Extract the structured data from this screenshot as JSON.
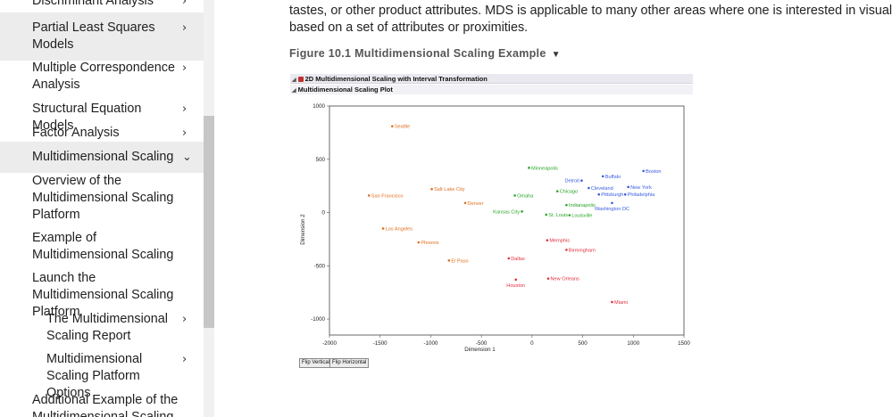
{
  "sidebar": {
    "items": [
      {
        "label": "Discriminant Analysis",
        "chevron": "›",
        "indent": false,
        "highlight": false,
        "top": -8
      },
      {
        "label": "Partial Least Squares Models",
        "chevron": "›",
        "indent": false,
        "highlight": true,
        "top": 22
      },
      {
        "label": "Multiple Correspondence Analysis",
        "chevron": "›",
        "indent": false,
        "highlight": false,
        "top": 67
      },
      {
        "label": "Structural Equation Models",
        "chevron": "›",
        "indent": false,
        "highlight": false,
        "top": 113
      },
      {
        "label": "Factor Analysis",
        "chevron": "›",
        "indent": false,
        "highlight": false,
        "top": 140
      },
      {
        "label": "Multidimensional Scaling",
        "chevron": "⌄",
        "indent": false,
        "highlight": true,
        "top": 167
      },
      {
        "label": "Overview of the Multidimensional Scaling Platform",
        "chevron": "",
        "indent": false,
        "highlight": false,
        "top": 194
      },
      {
        "label": "Example of Multidimensional Scaling",
        "chevron": "",
        "indent": false,
        "highlight": false,
        "top": 258
      },
      {
        "label": "Launch the Multidimensional Scaling Platform",
        "chevron": "",
        "indent": false,
        "highlight": false,
        "top": 303
      },
      {
        "label": "The Multidimensional Scaling Report",
        "chevron": "›",
        "indent": true,
        "highlight": false,
        "top": 349
      },
      {
        "label": "Multidimensional Scaling Platform Options",
        "chevron": "›",
        "indent": true,
        "highlight": false,
        "top": 394
      },
      {
        "label": "Additional Example of the Multidimensional Scaling",
        "chevron": "",
        "indent": false,
        "highlight": false,
        "top": 440
      }
    ]
  },
  "main": {
    "paragraph_line1": "tastes, or other product attributes. MDS is applicable to many other areas where one is interested in visualizing",
    "paragraph_line2": "based on a set of attributes or proximities.",
    "figure_caption": "Figure 10.1 Multidimensional Scaling Example",
    "caption_toggle_icon": "triangle-down-icon"
  },
  "report": {
    "outline_title": "2D Multidimensional Scaling with Interval Transformation",
    "plot_title": "Multidimensional Scaling Plot",
    "buttons": {
      "flip_vertical": "Flip Vertical",
      "flip_horizontal": "Flip Horizontal"
    }
  },
  "chart_data": {
    "type": "scatter",
    "xlabel": "Dimension 1",
    "ylabel": "Dimension 2",
    "xlim": [
      -2000,
      1500
    ],
    "ylim": [
      -1150,
      1000
    ],
    "xticks": [
      -2000,
      -1500,
      -1000,
      -500,
      0,
      500,
      1000,
      1500
    ],
    "yticks": [
      1000,
      500,
      0,
      -500,
      -1000
    ],
    "grid": false,
    "colors": {
      "orange": "#e07020",
      "green": "#2aa52a",
      "blue": "#3a5de0",
      "red": "#e03040"
    },
    "points": [
      {
        "label": "Seattle",
        "x": -1380,
        "y": 810,
        "color": "orange",
        "label_side": "right"
      },
      {
        "label": "San Francisco",
        "x": -1610,
        "y": 160,
        "color": "orange",
        "label_side": "right"
      },
      {
        "label": "Salt Lake City",
        "x": -990,
        "y": 220,
        "color": "orange",
        "label_side": "right"
      },
      {
        "label": "Denver",
        "x": -660,
        "y": 90,
        "color": "orange",
        "label_side": "right"
      },
      {
        "label": "Los Angeles",
        "x": -1470,
        "y": -150,
        "color": "orange",
        "label_side": "right"
      },
      {
        "label": "Phoenix",
        "x": -1120,
        "y": -280,
        "color": "orange",
        "label_side": "right"
      },
      {
        "label": "El Paso",
        "x": -820,
        "y": -450,
        "color": "orange",
        "label_side": "right"
      },
      {
        "label": "Minneapolis",
        "x": -30,
        "y": 420,
        "color": "green",
        "label_side": "right"
      },
      {
        "label": "Omaha",
        "x": -170,
        "y": 160,
        "color": "green",
        "label_side": "right"
      },
      {
        "label": "Chicago",
        "x": 250,
        "y": 200,
        "color": "green",
        "label_side": "right"
      },
      {
        "label": "Indianapolis",
        "x": 340,
        "y": 70,
        "color": "green",
        "label_side": "right"
      },
      {
        "label": "Kansas City",
        "x": -100,
        "y": 10,
        "color": "green",
        "label_side": "left"
      },
      {
        "label": "St. Louis",
        "x": 140,
        "y": -20,
        "color": "green",
        "label_side": "right"
      },
      {
        "label": "Louisville",
        "x": 370,
        "y": -25,
        "color": "green",
        "label_side": "right"
      },
      {
        "label": "Detroit",
        "x": 490,
        "y": 300,
        "color": "blue",
        "label_side": "left"
      },
      {
        "label": "Cleveland",
        "x": 560,
        "y": 230,
        "color": "blue",
        "label_side": "right"
      },
      {
        "label": "Buffalo",
        "x": 700,
        "y": 340,
        "color": "blue",
        "label_side": "right"
      },
      {
        "label": "Boston",
        "x": 1100,
        "y": 390,
        "color": "blue",
        "label_side": "right"
      },
      {
        "label": "New York",
        "x": 950,
        "y": 240,
        "color": "blue",
        "label_side": "right"
      },
      {
        "label": "Pittsburgh",
        "x": 660,
        "y": 170,
        "color": "blue",
        "label_side": "right"
      },
      {
        "label": "Philadelphia",
        "x": 920,
        "y": 170,
        "color": "blue",
        "label_side": "right"
      },
      {
        "label": "Washington DC",
        "x": 790,
        "y": 90,
        "color": "blue",
        "label_side": "below"
      },
      {
        "label": "Memphis",
        "x": 150,
        "y": -260,
        "color": "red",
        "label_side": "right"
      },
      {
        "label": "Birmingham",
        "x": 340,
        "y": -350,
        "color": "red",
        "label_side": "right"
      },
      {
        "label": "Dallas",
        "x": -230,
        "y": -430,
        "color": "red",
        "label_side": "right"
      },
      {
        "label": "Houston",
        "x": -160,
        "y": -630,
        "color": "red",
        "label_side": "below"
      },
      {
        "label": "New Orleans",
        "x": 160,
        "y": -620,
        "color": "red",
        "label_side": "right"
      },
      {
        "label": "Miami",
        "x": 790,
        "y": -840,
        "color": "red",
        "label_side": "right"
      }
    ]
  }
}
